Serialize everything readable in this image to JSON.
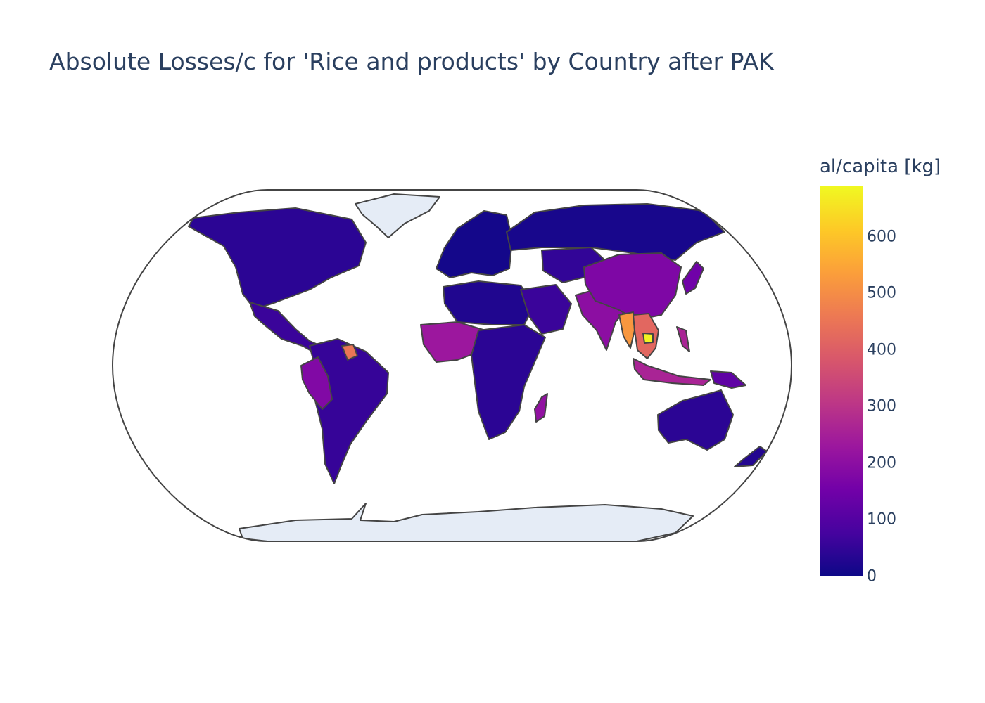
{
  "title": "Absolute Losses/c for 'Rice and products' by Country after PAK",
  "colorbar": {
    "title": "al/capita [kg]",
    "ticks": [
      {
        "label": "0",
        "value": 0
      },
      {
        "label": "100",
        "value": 100
      },
      {
        "label": "200",
        "value": 200
      },
      {
        "label": "300",
        "value": 300
      },
      {
        "label": "400",
        "value": 400
      },
      {
        "label": "500",
        "value": 500
      },
      {
        "label": "600",
        "value": 600
      }
    ],
    "min": 0,
    "max": 690,
    "colorscale": [
      "#0d0887",
      "#46039f",
      "#7201a8",
      "#9c179e",
      "#bd3786",
      "#d8576b",
      "#ed7953",
      "#fb9f3a",
      "#fdca26",
      "#f0f921"
    ]
  },
  "map": {
    "projection": "natural earth",
    "colors": {
      "frame": "#444444",
      "no_data": "#e5ecf6",
      "border": "#444444"
    },
    "regions": [
      {
        "name": "North America",
        "value": 40
      },
      {
        "name": "Central America",
        "value": 60
      },
      {
        "name": "South America",
        "value": 55
      },
      {
        "name": "Peru / Ecuador",
        "value": 180
      },
      {
        "name": "Guyana / Suriname",
        "value": 450
      },
      {
        "name": "Europe",
        "value": 10
      },
      {
        "name": "Russia",
        "value": 15
      },
      {
        "name": "North Africa",
        "value": 25
      },
      {
        "name": "West Africa",
        "value": 230
      },
      {
        "name": "Central / Southern Africa",
        "value": 40
      },
      {
        "name": "Madagascar",
        "value": 210
      },
      {
        "name": "Middle East",
        "value": 60
      },
      {
        "name": "Central Asia",
        "value": 50
      },
      {
        "name": "South Asia",
        "value": 200
      },
      {
        "name": "China",
        "value": 175
      },
      {
        "name": "Japan / Korea",
        "value": 150
      },
      {
        "name": "Myanmar",
        "value": 520
      },
      {
        "name": "Thailand / Laos / Vietnam",
        "value": 420
      },
      {
        "name": "Cambodia",
        "value": 680
      },
      {
        "name": "Indonesia / Philippines",
        "value": 260
      },
      {
        "name": "Papua New Guinea",
        "value": 120
      },
      {
        "name": "Australia",
        "value": 40
      },
      {
        "name": "New Zealand",
        "value": 30
      }
    ]
  }
}
